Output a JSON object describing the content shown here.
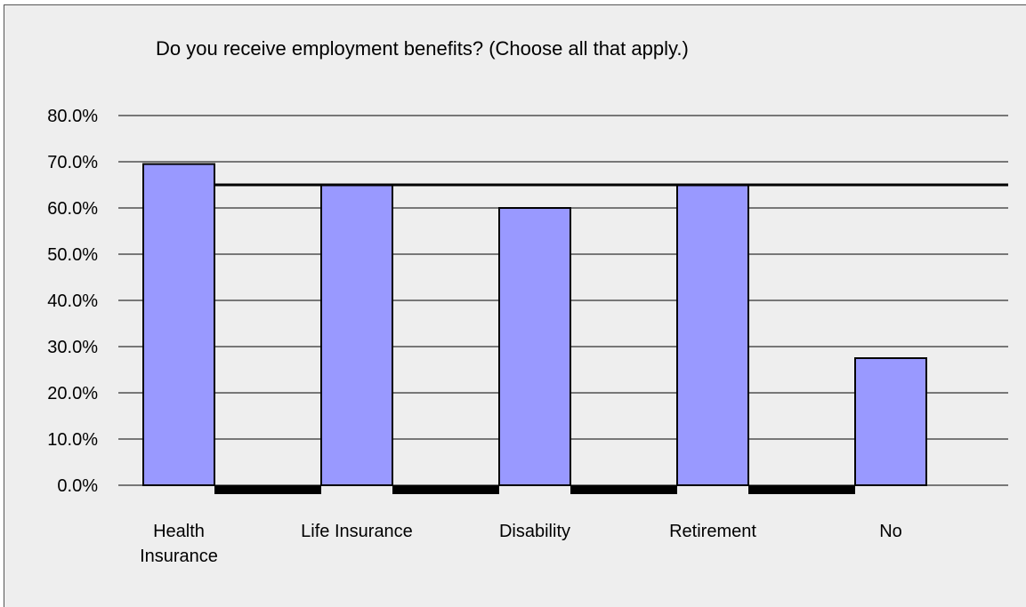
{
  "chart_data": {
    "type": "bar",
    "title": "Do you receive employment benefits? (Choose all that apply.)",
    "categories": [
      "Health Insurance",
      "Life Insurance",
      "Disability",
      "Retirement",
      "No"
    ],
    "category_lines": [
      [
        "Health",
        "Insurance"
      ],
      [
        "Life Insurance"
      ],
      [
        "Disability"
      ],
      [
        "Retirement"
      ],
      [
        "No"
      ]
    ],
    "series": [
      {
        "values": [
          69.5,
          65.0,
          60.0,
          65.0,
          27.5
        ]
      }
    ],
    "reference_line": 65.0,
    "ylim": [
      0,
      80
    ],
    "yticks": [
      "0.0%",
      "10.0%",
      "20.0%",
      "30.0%",
      "40.0%",
      "50.0%",
      "60.0%",
      "70.0%",
      "80.0%"
    ],
    "xlabel": "",
    "ylabel": "",
    "grid": true,
    "legend": "none",
    "colors": {
      "bar": "#9999ff",
      "bar_stroke": "#000000",
      "background": "#eeeeee",
      "grid": "#000000"
    }
  }
}
